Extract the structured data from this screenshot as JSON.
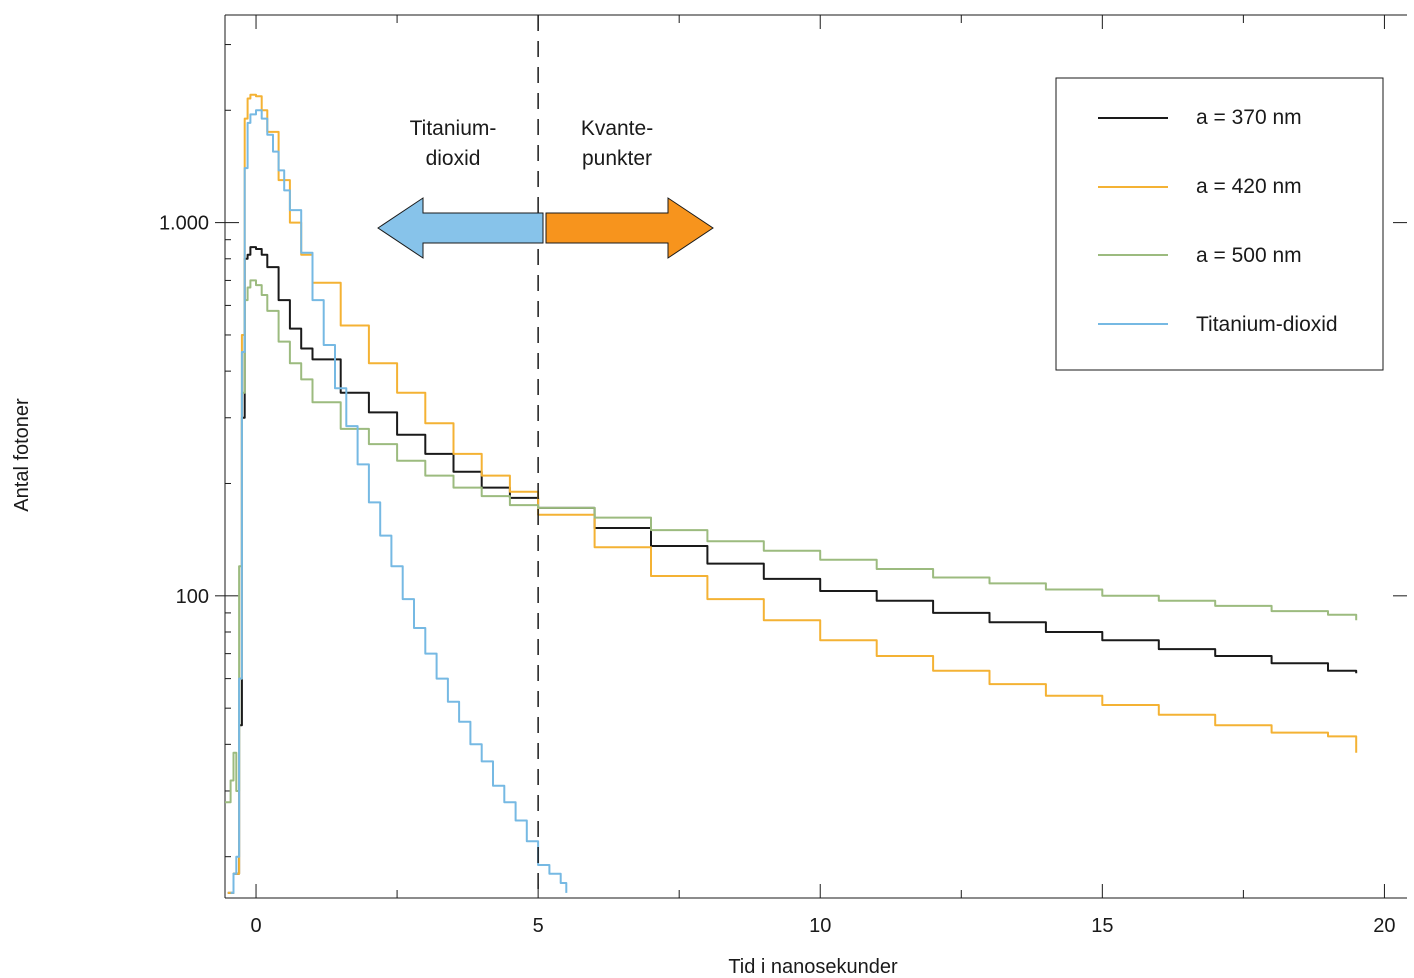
{
  "chart_data": {
    "type": "line",
    "title": "",
    "xlabel": "Tid i nanosekunder",
    "ylabel": "Antal fotoner",
    "x_scale": "linear",
    "y_scale": "log",
    "xlim": [
      -0.55,
      20.4
    ],
    "ylim": [
      15.5,
      3600
    ],
    "x_ticks": [
      {
        "value": 0,
        "label": "0"
      },
      {
        "value": 5,
        "label": "5"
      },
      {
        "value": 10,
        "label": "10"
      },
      {
        "value": 15,
        "label": "15"
      },
      {
        "value": 20,
        "label": "20"
      }
    ],
    "y_ticks": [
      {
        "value": 100,
        "label": "100"
      },
      {
        "value": 1000,
        "label": "1.000"
      }
    ],
    "grid": false,
    "legend_position": "top-right",
    "series": [
      {
        "name": "a = 370 nm",
        "color": "#1a1a1a",
        "x": [
          -0.5,
          -0.4,
          -0.3,
          -0.25,
          -0.2,
          -0.15,
          -0.1,
          0.0,
          0.1,
          0.2,
          0.4,
          0.6,
          0.8,
          1.0,
          1.5,
          2.0,
          2.5,
          3.0,
          3.5,
          4.0,
          4.5,
          5.0,
          6.0,
          7.0,
          8.0,
          9.0,
          10.0,
          11.0,
          12.0,
          13.0,
          14.0,
          15.0,
          16.0,
          17.0,
          18.0,
          19.0,
          19.5
        ],
        "y": [
          16,
          18,
          45,
          300,
          800,
          820,
          860,
          850,
          820,
          760,
          620,
          520,
          460,
          430,
          350,
          310,
          270,
          240,
          215,
          195,
          183,
          172,
          152,
          136,
          122,
          111,
          103,
          97,
          90,
          85,
          80,
          76,
          72,
          69,
          66,
          63,
          62
        ]
      },
      {
        "name": "a = 420 nm",
        "color": "#f4b234",
        "x": [
          -0.5,
          -0.4,
          -0.3,
          -0.25,
          -0.2,
          -0.15,
          -0.1,
          0.0,
          0.1,
          0.2,
          0.4,
          0.6,
          0.8,
          1.0,
          1.5,
          2.0,
          2.5,
          3.0,
          3.5,
          4.0,
          4.5,
          5.0,
          6.0,
          7.0,
          8.0,
          9.0,
          10.0,
          11.0,
          12.0,
          13.0,
          14.0,
          15.0,
          16.0,
          17.0,
          18.0,
          19.0,
          19.5
        ],
        "y": [
          16,
          18,
          60,
          500,
          1900,
          2150,
          2200,
          2180,
          2000,
          1750,
          1300,
          1000,
          820,
          690,
          530,
          420,
          350,
          290,
          240,
          210,
          190,
          165,
          135,
          113,
          98,
          86,
          76,
          69,
          63,
          58,
          54,
          51,
          48,
          45,
          43,
          42,
          38
        ]
      },
      {
        "name": "a = 500 nm",
        "color": "#9cbb7f",
        "x": [
          -0.55,
          -0.45,
          -0.4,
          -0.35,
          -0.3,
          -0.25,
          -0.2,
          -0.15,
          -0.1,
          0.0,
          0.1,
          0.2,
          0.4,
          0.6,
          0.8,
          1.0,
          1.5,
          2.0,
          2.5,
          3.0,
          3.5,
          4.0,
          4.5,
          5.0,
          6.0,
          7.0,
          8.0,
          9.0,
          10.0,
          11.0,
          12.0,
          13.0,
          14.0,
          15.0,
          16.0,
          17.0,
          18.0,
          19.0,
          19.5
        ],
        "y": [
          28,
          32,
          38,
          30,
          120,
          350,
          620,
          670,
          700,
          680,
          640,
          580,
          480,
          420,
          380,
          330,
          280,
          255,
          230,
          210,
          195,
          185,
          175,
          172,
          162,
          150,
          140,
          132,
          125,
          118,
          112,
          108,
          104,
          100,
          97,
          94,
          91,
          89,
          86
        ]
      },
      {
        "name": "Titanium-dioxid",
        "color": "#76b9e3",
        "x": [
          -0.45,
          -0.4,
          -0.35,
          -0.3,
          -0.25,
          -0.2,
          -0.15,
          -0.1,
          0.0,
          0.1,
          0.2,
          0.3,
          0.4,
          0.5,
          0.6,
          0.8,
          1.0,
          1.2,
          1.4,
          1.6,
          1.8,
          2.0,
          2.2,
          2.4,
          2.6,
          2.8,
          3.0,
          3.2,
          3.4,
          3.6,
          3.8,
          4.0,
          4.2,
          4.4,
          4.6,
          4.8,
          5.0,
          5.2,
          5.4,
          5.5
        ],
        "y": [
          16,
          18,
          20,
          60,
          450,
          1400,
          1850,
          1950,
          2000,
          1900,
          1720,
          1550,
          1380,
          1220,
          1080,
          830,
          620,
          470,
          360,
          285,
          225,
          178,
          145,
          120,
          98,
          82,
          70,
          60,
          52,
          46,
          40,
          36,
          31,
          28,
          25,
          22,
          19,
          18,
          17,
          16
        ]
      }
    ],
    "annotations": [
      {
        "text_lines": [
          "Titanium-",
          "dioxid"
        ],
        "color": "#87c3ea",
        "direction": "left"
      },
      {
        "text_lines": [
          "Kvante-",
          "punkter"
        ],
        "color": "#f7941d",
        "direction": "right"
      }
    ],
    "divider_x": 5
  }
}
